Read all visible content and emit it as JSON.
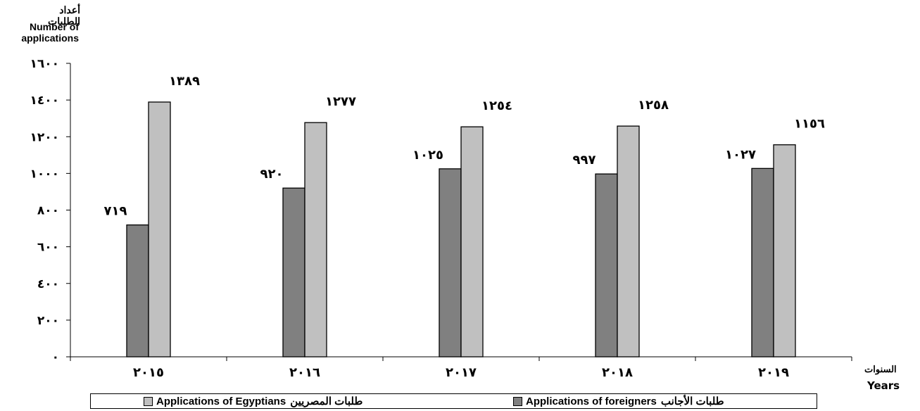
{
  "chart_data": {
    "type": "bar",
    "y_title_ar": "أعداد الطلبات",
    "y_title_en": "Number of applications",
    "x_title_ar": "السنوات",
    "x_title_en": "Years",
    "categories": [
      "٢٠١٥",
      "٢٠١٦",
      "٢٠١٧",
      "٢٠١٨",
      "٢٠١٩"
    ],
    "x_values": [
      2015,
      2016,
      2017,
      2018,
      2019
    ],
    "ylim": [
      0,
      1600
    ],
    "yticks": [
      0,
      200,
      400,
      600,
      800,
      1000,
      1200,
      1400,
      1600
    ],
    "ytick_labels": [
      "٠",
      "٢٠٠",
      "٤٠٠",
      "٦٠٠",
      "٨٠٠",
      "١٠٠٠",
      "١٢٠٠",
      "١٤٠٠",
      "١٦٠٠"
    ],
    "series": [
      {
        "name": "Applications of foreigners طلبات الأجانب",
        "values": [
          719,
          920,
          1025,
          997,
          1027
        ],
        "data_labels": [
          "٧١٩",
          "٩٢٠",
          "١٠٢٥",
          "٩٩٧",
          "١٠٢٧"
        ],
        "color": "#808080"
      },
      {
        "name": "Applications of Egyptians طلبات المصريين",
        "values": [
          1389,
          1277,
          1254,
          1258,
          1156
        ],
        "data_labels": [
          "١٣٨٩",
          "١٢٧٧",
          "١٢٥٤",
          "١٢٥٨",
          "١١٥٦"
        ],
        "color": "#c0c0c0"
      }
    ],
    "grid": false,
    "legend_position": "bottom"
  },
  "legend": {
    "foreigners_en": "Applications of foreigners",
    "foreigners_ar": "طلبات الأجانب",
    "egyptians_en": "Applications of Egyptians",
    "egyptians_ar": "طلبات المصريين"
  }
}
